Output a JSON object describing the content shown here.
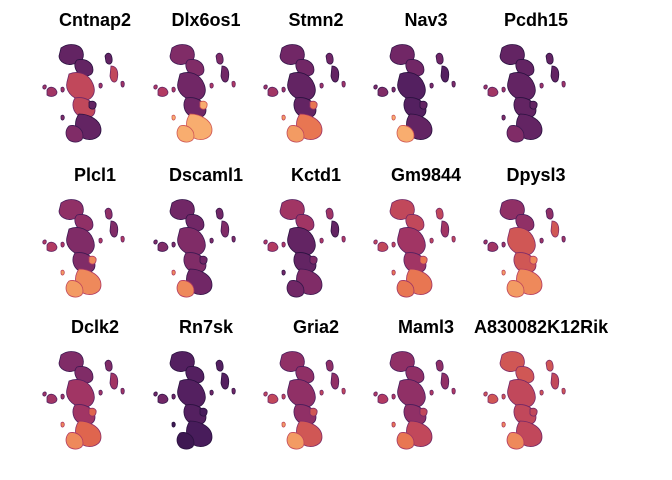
{
  "figure": {
    "type": "small-multiples-umap-feature-plots",
    "colormap": [
      "#2a1140",
      "#4b1d5e",
      "#7a2a68",
      "#b23a62",
      "#e46a4c",
      "#f7a769",
      "#fde3a7"
    ],
    "background": "#ffffff"
  },
  "chart_data": {
    "type": "scatter",
    "description_rows": 3,
    "description_cols": 5,
    "panels": [
      {
        "title": "Cntnap2",
        "expression": {
          "top": 0.25,
          "left_small": 0.45,
          "middle": 0.55,
          "lower": 0.25,
          "tail": 0.35
        }
      },
      {
        "title": "Dlx6os1",
        "expression": {
          "top": 0.35,
          "left_small": 0.5,
          "middle": 0.3,
          "lower": 0.85,
          "tail": 0.85
        }
      },
      {
        "title": "Stmn2",
        "expression": {
          "top": 0.3,
          "left_small": 0.45,
          "middle": 0.25,
          "lower": 0.7,
          "tail": 0.8
        }
      },
      {
        "title": "Nav3",
        "expression": {
          "top": 0.3,
          "left_small": 0.35,
          "middle": 0.2,
          "lower": 0.25,
          "tail": 0.85
        }
      },
      {
        "title": "Pcdh15",
        "expression": {
          "top": 0.25,
          "left_small": 0.45,
          "middle": 0.25,
          "lower": 0.25,
          "tail": 0.35
        }
      },
      {
        "title": "Plcl1",
        "expression": {
          "top": 0.4,
          "left_small": 0.5,
          "middle": 0.35,
          "lower": 0.75,
          "tail": 0.8
        }
      },
      {
        "title": "Dscaml1",
        "expression": {
          "top": 0.3,
          "left_small": 0.35,
          "middle": 0.35,
          "lower": 0.3,
          "tail": 0.75
        }
      },
      {
        "title": "Kctd1",
        "expression": {
          "top": 0.45,
          "left_small": 0.5,
          "middle": 0.25,
          "lower": 0.35,
          "tail": 0.3
        }
      },
      {
        "title": "Gm9844",
        "expression": {
          "top": 0.55,
          "left_small": 0.55,
          "middle": 0.45,
          "lower": 0.7,
          "tail": 0.7
        }
      },
      {
        "title": "Dpysl3",
        "expression": {
          "top": 0.4,
          "left_small": 0.45,
          "middle": 0.6,
          "lower": 0.75,
          "tail": 0.8
        }
      },
      {
        "title": "Dclk2",
        "expression": {
          "top": 0.35,
          "left_small": 0.45,
          "middle": 0.45,
          "lower": 0.65,
          "tail": 0.75
        }
      },
      {
        "title": "Rn7sk",
        "expression": {
          "top": 0.2,
          "left_small": 0.3,
          "middle": 0.2,
          "lower": 0.15,
          "tail": 0.1
        }
      },
      {
        "title": "Gria2",
        "expression": {
          "top": 0.4,
          "left_small": 0.55,
          "middle": 0.4,
          "lower": 0.6,
          "tail": 0.8
        }
      },
      {
        "title": "Maml3",
        "expression": {
          "top": 0.4,
          "left_small": 0.5,
          "middle": 0.4,
          "lower": 0.55,
          "tail": 0.7
        }
      },
      {
        "title": "A830082K12Rik",
        "expression": {
          "top": 0.6,
          "left_small": 0.6,
          "middle": 0.55,
          "lower": 0.55,
          "tail": 0.75
        }
      }
    ]
  }
}
